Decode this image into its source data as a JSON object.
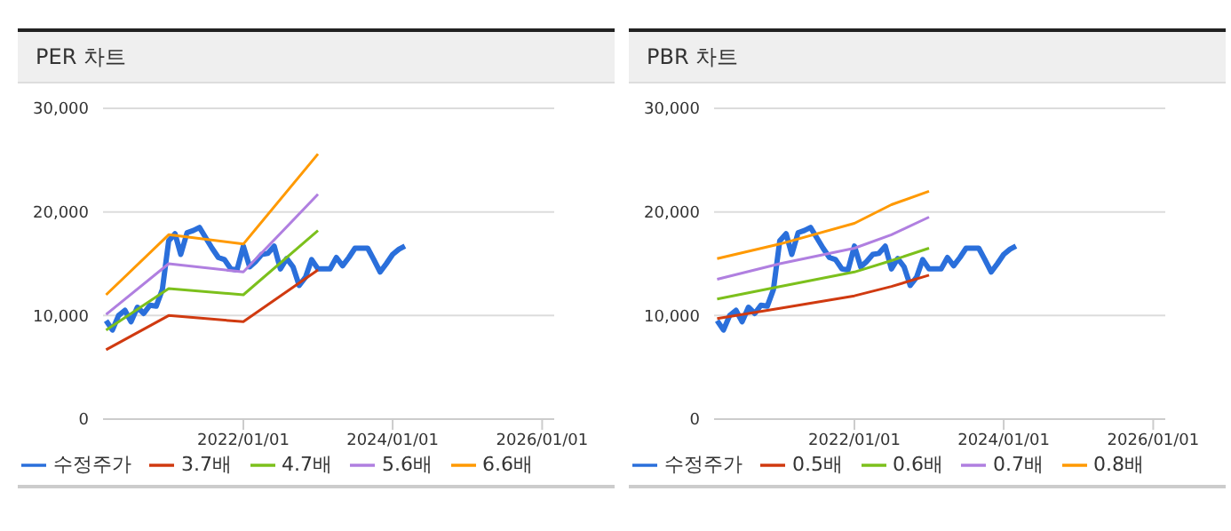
{
  "chart_data": [
    {
      "type": "line",
      "title": "PER 차트",
      "xlim": [
        "2020-02-15",
        "2026-03-01"
      ],
      "xticks": [
        {
          "value": "2022-01-01",
          "label": "2022/01/01"
        },
        {
          "value": "2024-01-01",
          "label": "2024/01/01"
        },
        {
          "value": "2026-01-01",
          "label": "2026/01/01"
        }
      ],
      "ylim": [
        0,
        30000
      ],
      "yticks": [
        {
          "value": 0,
          "label": "0"
        },
        {
          "value": 10000,
          "label": "10,000"
        },
        {
          "value": 20000,
          "label": "20,000"
        },
        {
          "value": 30000,
          "label": "30,000"
        }
      ],
      "grid": "y",
      "legend": "bottom",
      "series": [
        {
          "name": "수정주가",
          "color": "#2a6fdb",
          "x": [
            "2020-03",
            "2020-04",
            "2020-05",
            "2020-06",
            "2020-07",
            "2020-08",
            "2020-09",
            "2020-10",
            "2020-11",
            "2020-12",
            "2021-01",
            "2021-02",
            "2021-03",
            "2021-04",
            "2021-05",
            "2021-06",
            "2021-07",
            "2021-08",
            "2021-09",
            "2021-10",
            "2021-11",
            "2021-12",
            "2022-01",
            "2022-02",
            "2022-03",
            "2022-04",
            "2022-05",
            "2022-06",
            "2022-07",
            "2022-08",
            "2022-09",
            "2022-10",
            "2022-11",
            "2022-12",
            "2023-01",
            "2023-03",
            "2023-04",
            "2023-05",
            "2023-06",
            "2023-07",
            "2023-09",
            "2023-10",
            "2023-11",
            "2023-12",
            "2024-01",
            "2024-02",
            "2024-03"
          ],
          "values": [
            9500,
            8600,
            10000,
            10500,
            9400,
            10800,
            10200,
            11000,
            10900,
            12500,
            17200,
            17900,
            15900,
            18000,
            18200,
            18500,
            17500,
            16500,
            15600,
            15400,
            14500,
            14400,
            16700,
            14700,
            15200,
            15900,
            16000,
            16700,
            14500,
            15500,
            14700,
            12900,
            13700,
            15400,
            14500,
            14500,
            15600,
            14800,
            15600,
            16500,
            16500,
            15400,
            14200,
            15000,
            15900,
            16400,
            16700
          ]
        },
        {
          "name": "3.7배",
          "color": "#d03a10",
          "x": [
            "2020-03",
            "2021-01",
            "2022-01",
            "2023-01"
          ],
          "values": [
            6700,
            10000,
            9400,
            14400
          ]
        },
        {
          "name": "4.7배",
          "color": "#7cc01c",
          "x": [
            "2020-03",
            "2021-01",
            "2022-01",
            "2023-01"
          ],
          "values": [
            8600,
            12600,
            12000,
            18200
          ]
        },
        {
          "name": "5.6배",
          "color": "#b07fe0",
          "x": [
            "2020-03",
            "2021-01",
            "2022-01",
            "2023-01"
          ],
          "values": [
            10100,
            15000,
            14200,
            21700
          ]
        },
        {
          "name": "6.6배",
          "color": "#ff9900",
          "x": [
            "2020-03",
            "2021-01",
            "2022-01",
            "2023-01"
          ],
          "values": [
            12000,
            17800,
            16900,
            25600
          ]
        }
      ]
    },
    {
      "type": "line",
      "title": "PBR 차트",
      "xlim": [
        "2020-02-15",
        "2026-03-01"
      ],
      "xticks": [
        {
          "value": "2022-01-01",
          "label": "2022/01/01"
        },
        {
          "value": "2024-01-01",
          "label": "2024/01/01"
        },
        {
          "value": "2026-01-01",
          "label": "2026/01/01"
        }
      ],
      "ylim": [
        0,
        30000
      ],
      "yticks": [
        {
          "value": 0,
          "label": "0"
        },
        {
          "value": 10000,
          "label": "10,000"
        },
        {
          "value": 20000,
          "label": "20,000"
        },
        {
          "value": 30000,
          "label": "30,000"
        }
      ],
      "grid": "y",
      "legend": "bottom",
      "series": [
        {
          "name": "수정주가",
          "color": "#2a6fdb",
          "x": [
            "2020-03",
            "2020-04",
            "2020-05",
            "2020-06",
            "2020-07",
            "2020-08",
            "2020-09",
            "2020-10",
            "2020-11",
            "2020-12",
            "2021-01",
            "2021-02",
            "2021-03",
            "2021-04",
            "2021-05",
            "2021-06",
            "2021-07",
            "2021-08",
            "2021-09",
            "2021-10",
            "2021-11",
            "2021-12",
            "2022-01",
            "2022-02",
            "2022-03",
            "2022-04",
            "2022-05",
            "2022-06",
            "2022-07",
            "2022-08",
            "2022-09",
            "2022-10",
            "2022-11",
            "2022-12",
            "2023-01",
            "2023-03",
            "2023-04",
            "2023-05",
            "2023-06",
            "2023-07",
            "2023-09",
            "2023-10",
            "2023-11",
            "2023-12",
            "2024-01",
            "2024-02",
            "2024-03"
          ],
          "values": [
            9500,
            8600,
            10000,
            10500,
            9400,
            10800,
            10200,
            11000,
            10900,
            12500,
            17200,
            17900,
            15900,
            18000,
            18200,
            18500,
            17500,
            16500,
            15600,
            15400,
            14500,
            14400,
            16700,
            14700,
            15200,
            15900,
            16000,
            16700,
            14500,
            15500,
            14700,
            12900,
            13700,
            15400,
            14500,
            14500,
            15600,
            14800,
            15600,
            16500,
            16500,
            15400,
            14200,
            15000,
            15900,
            16400,
            16700
          ]
        },
        {
          "name": "0.5배",
          "color": "#d03a10",
          "x": [
            "2020-03",
            "2021-01",
            "2022-01",
            "2022-07",
            "2023-01"
          ],
          "values": [
            9700,
            10700,
            11900,
            12800,
            13900
          ]
        },
        {
          "name": "0.6배",
          "color": "#7cc01c",
          "x": [
            "2020-03",
            "2021-01",
            "2022-01",
            "2022-07",
            "2023-01"
          ],
          "values": [
            11600,
            12800,
            14200,
            15300,
            16500
          ]
        },
        {
          "name": "0.7배",
          "color": "#b07fe0",
          "x": [
            "2020-03",
            "2021-01",
            "2022-01",
            "2022-07",
            "2023-01"
          ],
          "values": [
            13500,
            15000,
            16500,
            17800,
            19500
          ]
        },
        {
          "name": "0.8배",
          "color": "#ff9900",
          "x": [
            "2020-03",
            "2021-01",
            "2022-01",
            "2022-07",
            "2023-01"
          ],
          "values": [
            15500,
            16900,
            18900,
            20700,
            22000
          ]
        }
      ]
    }
  ]
}
